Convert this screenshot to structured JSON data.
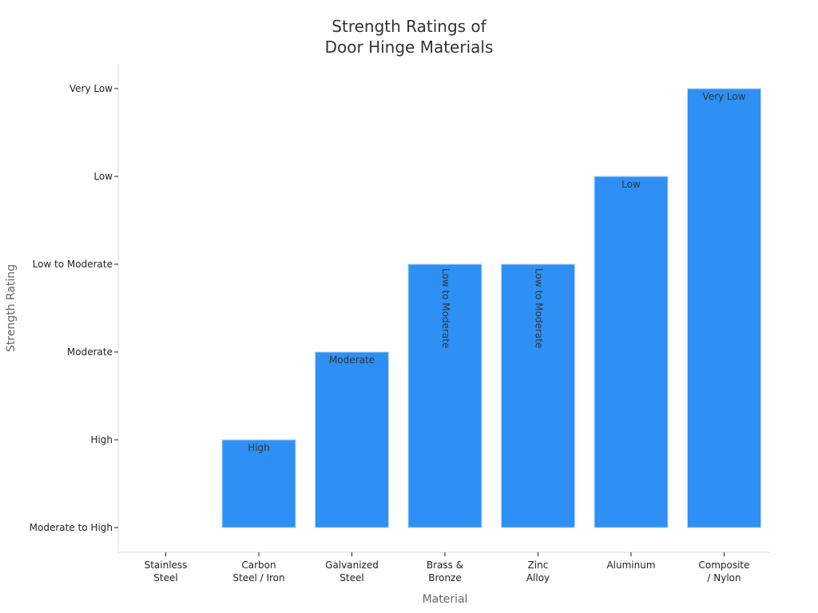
{
  "chart_data": {
    "type": "bar",
    "title_lines": [
      "Strength Ratings of",
      "Door Hinge Materials"
    ],
    "xlabel": "Material",
    "ylabel": "Strength Rating",
    "y_categories": [
      "Moderate to High",
      "High",
      "Moderate",
      "Low to Moderate",
      "Low",
      "Very Low"
    ],
    "grid": false,
    "legend": "none",
    "bar_color": "#2e90f5",
    "categories": [
      [
        "Stainless",
        "Steel"
      ],
      [
        "Carbon",
        "Steel / Iron"
      ],
      [
        "Galvanized",
        "Steel"
      ],
      [
        "Brass &",
        "Bronze"
      ],
      [
        "Zinc",
        "Alloy"
      ],
      [
        "Aluminum"
      ],
      [
        "Composite",
        "/ Nylon"
      ]
    ],
    "values": [
      0,
      1,
      2,
      3,
      3,
      4,
      5
    ],
    "data_labels": [
      "",
      "High",
      "Moderate",
      "Low to Moderate",
      "Low to Moderate",
      "Low",
      "Very Low"
    ],
    "label_orientation": [
      "horizontal",
      "horizontal",
      "horizontal",
      "vertical",
      "vertical",
      "horizontal",
      "horizontal"
    ]
  }
}
